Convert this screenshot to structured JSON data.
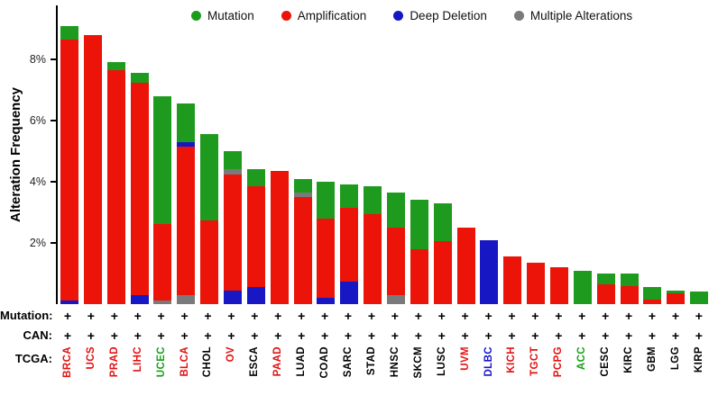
{
  "ylabel": "Alteration Frequency",
  "legend": [
    {
      "label": "Mutation",
      "color": "#1e9b1e"
    },
    {
      "label": "Amplification",
      "color": "#ec1308"
    },
    {
      "label": "Deep Deletion",
      "color": "#1717c3"
    },
    {
      "label": "Multiple Alterations",
      "color": "#7a7a7a"
    }
  ],
  "rows": {
    "mutation_label": "Mutation:",
    "can_label": "CAN:",
    "tcga_label": "TCGA:",
    "plus": "+"
  },
  "chart_data": {
    "type": "bar",
    "stacked": true,
    "title": "",
    "xlabel": "",
    "ylabel": "Alteration Frequency",
    "ylim": [
      0,
      9.6
    ],
    "yticks": [
      "2%",
      "4%",
      "6%",
      "8%"
    ],
    "ytick_values": [
      2,
      4,
      6,
      8
    ],
    "grid": false,
    "legend_position": "top",
    "segment_types": {
      "m": "Mutation",
      "a": "Amplification",
      "d": "Deep Deletion",
      "x": "Multiple Alterations"
    },
    "segment_colors": {
      "m": "#1e9b1e",
      "a": "#ec1308",
      "d": "#1717c3",
      "x": "#7a7a7a"
    },
    "bars": [
      {
        "category": "BRCA",
        "label_color": "#e31010",
        "total": 9.1,
        "segments": [
          {
            "t": "d",
            "v": 0.12
          },
          {
            "t": "a",
            "v": 8.53
          },
          {
            "t": "m",
            "v": 0.45
          }
        ]
      },
      {
        "category": "UCS",
        "label_color": "#e31010",
        "total": 8.8,
        "segments": [
          {
            "t": "a",
            "v": 8.8
          }
        ]
      },
      {
        "category": "PRAD",
        "label_color": "#e31010",
        "total": 7.9,
        "segments": [
          {
            "t": "a",
            "v": 7.65
          },
          {
            "t": "m",
            "v": 0.25
          }
        ]
      },
      {
        "category": "LIHC",
        "label_color": "#e31010",
        "total": 7.55,
        "segments": [
          {
            "t": "d",
            "v": 0.3
          },
          {
            "t": "a",
            "v": 6.95
          },
          {
            "t": "m",
            "v": 0.3
          }
        ]
      },
      {
        "category": "UCEC",
        "label_color": "#18a018",
        "total": 6.8,
        "segments": [
          {
            "t": "x",
            "v": 0.12
          },
          {
            "t": "a",
            "v": 2.5
          },
          {
            "t": "m",
            "v": 4.18
          }
        ]
      },
      {
        "category": "BLCA",
        "label_color": "#e31010",
        "total": 6.55,
        "segments": [
          {
            "t": "x",
            "v": 0.3
          },
          {
            "t": "a",
            "v": 4.85
          },
          {
            "t": "d",
            "v": 0.15
          },
          {
            "t": "m",
            "v": 1.25
          }
        ]
      },
      {
        "category": "CHOL",
        "label_color": "#000000",
        "total": 5.55,
        "segments": [
          {
            "t": "a",
            "v": 2.75
          },
          {
            "t": "m",
            "v": 2.8
          }
        ]
      },
      {
        "category": "OV",
        "label_color": "#e31010",
        "total": 5.0,
        "segments": [
          {
            "t": "d",
            "v": 0.45
          },
          {
            "t": "a",
            "v": 3.8
          },
          {
            "t": "x",
            "v": 0.15
          },
          {
            "t": "m",
            "v": 0.6
          }
        ]
      },
      {
        "category": "ESCA",
        "label_color": "#000000",
        "total": 4.4,
        "segments": [
          {
            "t": "d",
            "v": 0.55
          },
          {
            "t": "a",
            "v": 3.3
          },
          {
            "t": "m",
            "v": 0.55
          }
        ]
      },
      {
        "category": "PAAD",
        "label_color": "#e31010",
        "total": 4.35,
        "segments": [
          {
            "t": "a",
            "v": 4.35
          }
        ]
      },
      {
        "category": "LUAD",
        "label_color": "#000000",
        "total": 4.1,
        "segments": [
          {
            "t": "a",
            "v": 3.5
          },
          {
            "t": "x",
            "v": 0.15
          },
          {
            "t": "m",
            "v": 0.45
          }
        ]
      },
      {
        "category": "COAD",
        "label_color": "#000000",
        "total": 4.0,
        "segments": [
          {
            "t": "d",
            "v": 0.2
          },
          {
            "t": "a",
            "v": 2.6
          },
          {
            "t": "m",
            "v": 1.2
          }
        ]
      },
      {
        "category": "SARC",
        "label_color": "#000000",
        "total": 3.9,
        "segments": [
          {
            "t": "d",
            "v": 0.75
          },
          {
            "t": "a",
            "v": 2.4
          },
          {
            "t": "m",
            "v": 0.75
          }
        ]
      },
      {
        "category": "STAD",
        "label_color": "#000000",
        "total": 3.85,
        "segments": [
          {
            "t": "a",
            "v": 2.95
          },
          {
            "t": "m",
            "v": 0.9
          }
        ]
      },
      {
        "category": "HNSC",
        "label_color": "#000000",
        "total": 3.65,
        "segments": [
          {
            "t": "x",
            "v": 0.3
          },
          {
            "t": "a",
            "v": 2.2
          },
          {
            "t": "m",
            "v": 1.15
          }
        ]
      },
      {
        "category": "SKCM",
        "label_color": "#000000",
        "total": 3.4,
        "segments": [
          {
            "t": "a",
            "v": 1.8
          },
          {
            "t": "m",
            "v": 1.6
          }
        ]
      },
      {
        "category": "LUSC",
        "label_color": "#000000",
        "total": 3.3,
        "segments": [
          {
            "t": "a",
            "v": 2.05
          },
          {
            "t": "m",
            "v": 1.25
          }
        ]
      },
      {
        "category": "UVM",
        "label_color": "#e31010",
        "total": 2.5,
        "segments": [
          {
            "t": "a",
            "v": 2.5
          }
        ]
      },
      {
        "category": "DLBC",
        "label_color": "#1515cc",
        "total": 2.1,
        "segments": [
          {
            "t": "d",
            "v": 2.1
          }
        ]
      },
      {
        "category": "KICH",
        "label_color": "#e31010",
        "total": 1.55,
        "segments": [
          {
            "t": "a",
            "v": 1.55
          }
        ]
      },
      {
        "category": "TGCT",
        "label_color": "#e31010",
        "total": 1.35,
        "segments": [
          {
            "t": "a",
            "v": 1.35
          }
        ]
      },
      {
        "category": "PCPG",
        "label_color": "#e31010",
        "total": 1.2,
        "segments": [
          {
            "t": "a",
            "v": 1.2
          }
        ]
      },
      {
        "category": "ACC",
        "label_color": "#18a018",
        "total": 1.1,
        "segments": [
          {
            "t": "m",
            "v": 1.1
          }
        ]
      },
      {
        "category": "CESC",
        "label_color": "#000000",
        "total": 1.0,
        "segments": [
          {
            "t": "a",
            "v": 0.65
          },
          {
            "t": "m",
            "v": 0.35
          }
        ]
      },
      {
        "category": "KIRC",
        "label_color": "#000000",
        "total": 1.0,
        "segments": [
          {
            "t": "a",
            "v": 0.6
          },
          {
            "t": "m",
            "v": 0.4
          }
        ]
      },
      {
        "category": "GBM",
        "label_color": "#000000",
        "total": 0.55,
        "segments": [
          {
            "t": "a",
            "v": 0.15
          },
          {
            "t": "m",
            "v": 0.4
          }
        ]
      },
      {
        "category": "LGG",
        "label_color": "#000000",
        "total": 0.45,
        "segments": [
          {
            "t": "a",
            "v": 0.35
          },
          {
            "t": "m",
            "v": 0.1
          }
        ]
      },
      {
        "category": "KIRP",
        "label_color": "#000000",
        "total": 0.4,
        "segments": [
          {
            "t": "m",
            "v": 0.4
          }
        ]
      }
    ]
  }
}
